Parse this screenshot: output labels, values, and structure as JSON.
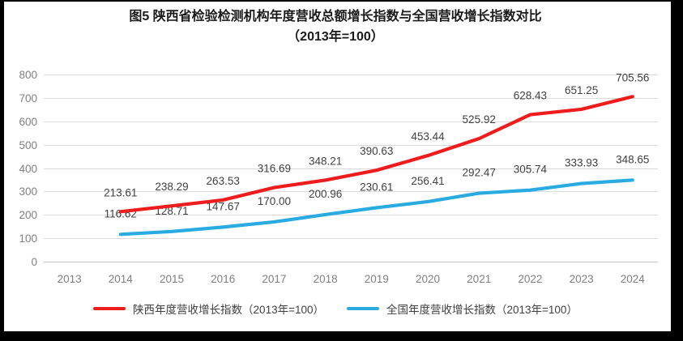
{
  "title": {
    "line1": "图5  陕西省检验检测机构年度营收总额增长指数与全国营收增长指数对比",
    "line2": "（2013年=100）"
  },
  "chart_data": {
    "type": "line",
    "categories": [
      "2013",
      "2014",
      "2015",
      "2016",
      "2017",
      "2018",
      "2019",
      "2020",
      "2021",
      "2022",
      "2023",
      "2024"
    ],
    "start_index": 1,
    "series": [
      {
        "name": "陕西年度营收增长指数（2013年=100）",
        "color": "#ee1c1c",
        "values": [
          213.61,
          238.29,
          263.53,
          316.69,
          348.21,
          390.63,
          453.44,
          525.92,
          628.43,
          651.25,
          705.56
        ]
      },
      {
        "name": "全国年度营收增长指数（2013年=100）",
        "color": "#29abe2",
        "values": [
          116.62,
          128.71,
          147.67,
          170.0,
          200.96,
          230.61,
          256.41,
          292.47,
          305.74,
          333.93,
          348.65
        ]
      }
    ],
    "ylim": [
      0,
      800
    ],
    "ytick_step": 100,
    "yticks": [
      "0",
      "100",
      "200",
      "300",
      "400",
      "500",
      "600",
      "700",
      "800"
    ],
    "grid": "horizontal",
    "legend_position": "bottom",
    "xlabel": "",
    "ylabel": ""
  },
  "colors": {
    "gridline": "#d9d9d9",
    "axis_line": "#c6c6c6",
    "axis_text": "#7f7f7f",
    "data_label": "#3f3f3f",
    "title_text": "#1a1a1a",
    "frame_border": "#000000"
  }
}
